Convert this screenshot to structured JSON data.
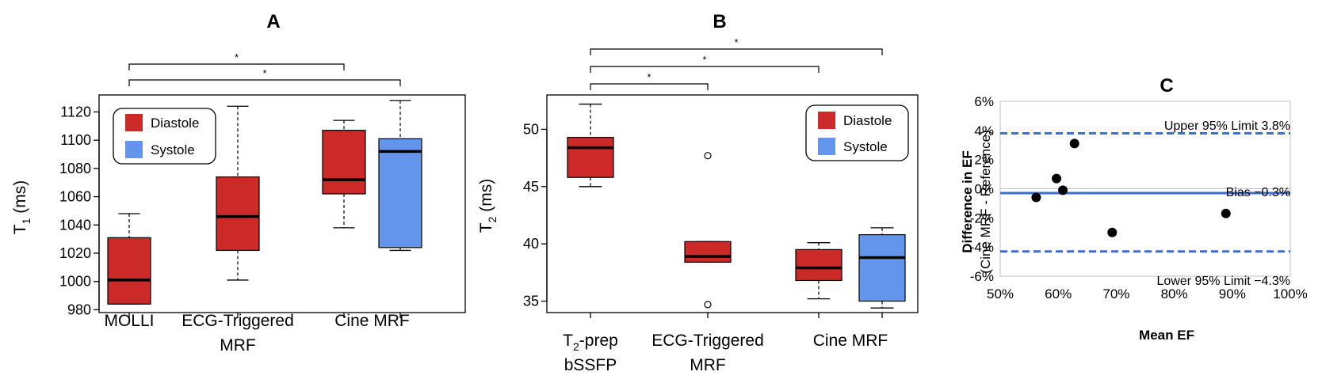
{
  "chart_data": [
    {
      "type": "box",
      "title": "A",
      "ylabel": "T",
      "ylabel_sub": "1",
      "ylabel_unit": " (ms)",
      "ylim": [
        978,
        1132
      ],
      "yticks": [
        980,
        1000,
        1020,
        1040,
        1060,
        1080,
        1100,
        1120
      ],
      "categories": [
        {
          "label": [
            "MOLLI"
          ]
        },
        {
          "label": [
            "ECG-Triggered",
            "MRF"
          ]
        },
        {
          "label": [
            "Cine MRF"
          ]
        }
      ],
      "legend": {
        "position": "top-left",
        "entries": [
          {
            "name": "Diastole",
            "color": "#CC2929"
          },
          {
            "name": "Systole",
            "color": "#6495ED"
          }
        ]
      },
      "boxes": [
        {
          "category": 0,
          "series": "Diastole",
          "min": 984,
          "q1": 984,
          "median": 1001,
          "q3": 1031,
          "max": 1048,
          "outliers": []
        },
        {
          "category": 1,
          "series": "Diastole",
          "min": 1001,
          "q1": 1022,
          "median": 1046,
          "q3": 1074,
          "max": 1124,
          "outliers": []
        },
        {
          "category": 2,
          "series": "Diastole",
          "min": 1038,
          "q1": 1062,
          "median": 1072,
          "q3": 1107,
          "max": 1114,
          "outliers": []
        },
        {
          "category": 2,
          "series": "Systole",
          "min": 1022,
          "q1": 1024,
          "median": 1092,
          "q3": 1101,
          "max": 1128,
          "outliers": []
        }
      ],
      "significance": [
        {
          "from": 0,
          "to": 2,
          "label": "*",
          "level": 2,
          "to_series": "Diastole"
        },
        {
          "from": 0,
          "to": 2,
          "label": "*",
          "level": 1,
          "to_series": "Systole"
        }
      ]
    },
    {
      "type": "box",
      "title": "B",
      "ylabel": "T",
      "ylabel_sub": "2",
      "ylabel_unit": " (ms)",
      "ylim": [
        34,
        53
      ],
      "yticks": [
        35,
        40,
        45,
        50
      ],
      "categories": [
        {
          "label": [
            "T2-prep",
            "bSSFP"
          ],
          "sub_label": {
            "base": "T",
            "sub": "2",
            "rest": "-prep"
          }
        },
        {
          "label": [
            "ECG-Triggered",
            "MRF"
          ]
        },
        {
          "label": [
            "Cine MRF"
          ]
        }
      ],
      "legend": {
        "position": "top-right",
        "entries": [
          {
            "name": "Diastole",
            "color": "#CC2929"
          },
          {
            "name": "Systole",
            "color": "#6495ED"
          }
        ]
      },
      "boxes": [
        {
          "category": 0,
          "series": "Diastole",
          "min": 45.0,
          "q1": 45.8,
          "median": 48.4,
          "q3": 49.3,
          "max": 52.2,
          "outliers": []
        },
        {
          "category": 1,
          "series": "Diastole",
          "min": 38.4,
          "q1": 38.4,
          "median": 38.9,
          "q3": 40.2,
          "max": 40.2,
          "outliers": [
            34.7,
            47.7
          ]
        },
        {
          "category": 2,
          "series": "Diastole",
          "min": 35.2,
          "q1": 36.8,
          "median": 37.9,
          "q3": 39.5,
          "max": 40.1,
          "outliers": []
        },
        {
          "category": 2,
          "series": "Systole",
          "min": 34.4,
          "q1": 35.0,
          "median": 38.8,
          "q3": 40.8,
          "max": 41.4,
          "outliers": []
        }
      ],
      "significance": [
        {
          "from": 0,
          "to": 1,
          "label": "*",
          "level": 1,
          "to_series": "Diastole"
        },
        {
          "from": 0,
          "to": 2,
          "label": "*",
          "level": 2,
          "to_series": "Diastole"
        },
        {
          "from": 0,
          "to": 2,
          "label": "*",
          "level": 3,
          "to_series": "Systole"
        }
      ]
    },
    {
      "type": "scatter",
      "title": "C",
      "xlabel": "Mean EF",
      "ylabel": "Difference in EF",
      "ylabel2": "(Cine MRF - Reference)",
      "xlim": [
        50,
        100
      ],
      "ylim": [
        -6,
        6
      ],
      "xticks": [
        50,
        60,
        70,
        80,
        90,
        100
      ],
      "xtick_labels": [
        "50%",
        "60%",
        "70%",
        "80%",
        "90%",
        "100%"
      ],
      "yticks": [
        6,
        4,
        2,
        0,
        -2,
        -4,
        -6
      ],
      "ytick_labels": [
        "6%",
        "4%",
        "2%",
        "0%",
        "-2%",
        "-4%",
        "-6%"
      ],
      "points": [
        {
          "x": 56.2,
          "y": -0.6
        },
        {
          "x": 59.7,
          "y": 0.7
        },
        {
          "x": 60.8,
          "y": -0.1
        },
        {
          "x": 62.8,
          "y": 3.1
        },
        {
          "x": 69.3,
          "y": -3.0
        },
        {
          "x": 88.9,
          "y": -1.7
        }
      ],
      "bias": {
        "value": -0.3,
        "label": "Bias −0.3%"
      },
      "upper_limit": {
        "value": 3.8,
        "label": "Upper 95% Limit 3.8%"
      },
      "lower_limit": {
        "value": -4.3,
        "label": "Lower 95% Limit −4.3%"
      },
      "line_color": "#3B6FD6"
    }
  ]
}
